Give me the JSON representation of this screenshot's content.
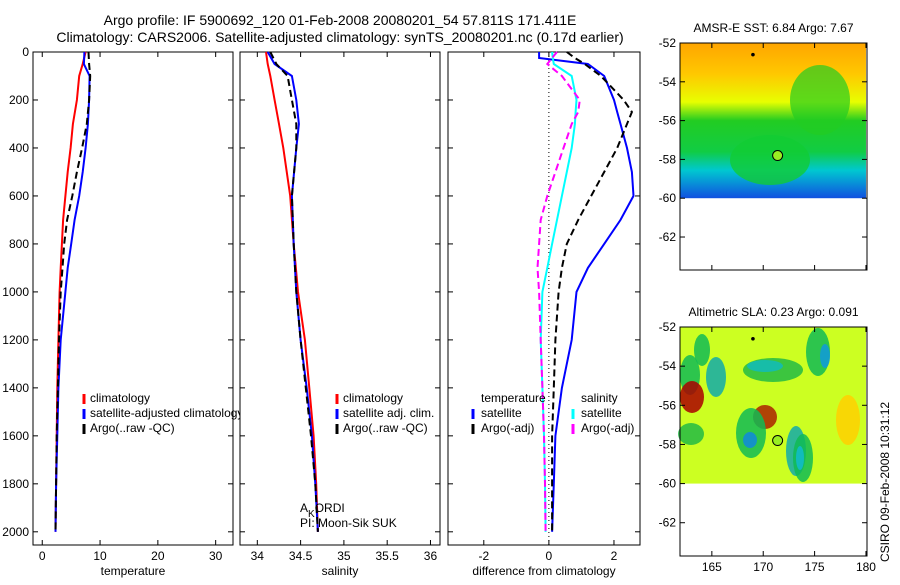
{
  "title": {
    "line1": "Argo profile: IF 5900692_120 01-Feb-2008 20080201_54 57.811S 171.411E",
    "line2": "Climatology: CARS2006. Satellite-adjusted climatology: synTS_20080201.nc (0.17d earlier)"
  },
  "credit": "CSIRO 09-Feb-2008 10:31:12",
  "annotation": {
    "agency_main": "A",
    "agency_sub": "K",
    "agency_rest": "ORDI",
    "pi": "PI: Moon-Sik SUK"
  },
  "colors": {
    "climatology": "#ff0000",
    "satellite": "#0000ff",
    "argo": "#000000",
    "sal_satellite": "#00ffff",
    "sal_argo": "#ff00ff"
  },
  "chart_data": [
    {
      "type": "line",
      "xlabel": "temperature",
      "ylabel": "",
      "xlim": [
        -1.6,
        33
      ],
      "ylim": [
        2055,
        0
      ],
      "xticks": [
        "0",
        "10",
        "20",
        "30"
      ],
      "xtick_values": [
        0,
        10,
        20,
        30
      ],
      "yticks": [
        "0",
        "200",
        "400",
        "600",
        "800",
        "1000",
        "1200",
        "1400",
        "1600",
        "1800",
        "2000"
      ],
      "legend": [
        "climatology",
        "satellite-adjusted climatology",
        "Argo(..raw -QC)"
      ],
      "legend_position": "lower-right",
      "depth": [
        0,
        50,
        100,
        200,
        300,
        400,
        500,
        600,
        700,
        800,
        900,
        1000,
        1200,
        1400,
        1600,
        1800,
        2000
      ],
      "series": [
        {
          "name": "climatology",
          "style": "solid",
          "color": "#ff0000",
          "values": [
            7.5,
            7.0,
            6.4,
            6.0,
            5.3,
            4.9,
            4.4,
            4.0,
            3.6,
            3.4,
            3.2,
            3.0,
            2.8,
            2.6,
            2.5,
            2.4,
            2.3
          ]
        },
        {
          "name": "satellite-adjusted climatology",
          "style": "solid",
          "color": "#0000ff",
          "values": [
            7.3,
            7.2,
            8.2,
            8.1,
            7.9,
            7.5,
            7.0,
            6.4,
            5.6,
            5.0,
            4.4,
            4.0,
            3.2,
            2.8,
            2.6,
            2.4,
            2.3
          ]
        },
        {
          "name": "Argo(..raw -QC)",
          "style": "dash",
          "color": "#000000",
          "values": [
            8.0,
            8.1,
            8.3,
            8.1,
            7.7,
            6.9,
            6.0,
            5.2,
            4.3,
            3.8,
            3.5,
            3.2,
            2.9,
            2.7,
            2.5,
            2.4,
            2.3
          ]
        }
      ]
    },
    {
      "type": "line",
      "xlabel": "salinity",
      "xlim": [
        33.8,
        36.11
      ],
      "ylim": [
        2055,
        0
      ],
      "xticks": [
        "34",
        "34.5",
        "35",
        "35.5",
        "36"
      ],
      "xtick_values": [
        34,
        34.5,
        35,
        35.5,
        36
      ],
      "legend": [
        "climatology",
        "satellite adj. clim.",
        "Argo(..raw -QC)"
      ],
      "legend_position": "lower-right",
      "depth": [
        0,
        50,
        100,
        200,
        300,
        400,
        600,
        800,
        1000,
        1200,
        1400,
        1600,
        1800,
        2000
      ],
      "series": [
        {
          "name": "climatology",
          "style": "solid",
          "color": "#ff0000",
          "values": [
            34.1,
            34.12,
            34.15,
            34.2,
            34.25,
            34.3,
            34.38,
            34.42,
            34.47,
            34.55,
            34.6,
            34.65,
            34.68,
            34.7
          ]
        },
        {
          "name": "satellite adj. clim.",
          "style": "solid",
          "color": "#0000ff",
          "values": [
            34.12,
            34.2,
            34.4,
            34.45,
            34.48,
            34.45,
            34.4,
            34.42,
            34.45,
            34.5,
            34.57,
            34.63,
            34.67,
            34.7
          ]
        },
        {
          "name": "Argo(..raw -QC)",
          "style": "dash",
          "color": "#000000",
          "values": [
            34.15,
            34.22,
            34.35,
            34.4,
            34.45,
            34.45,
            34.4,
            34.42,
            34.45,
            34.5,
            34.56,
            34.62,
            34.67,
            34.7
          ]
        }
      ]
    },
    {
      "type": "line",
      "xlabel": "difference from climatology",
      "xlim": [
        -3.1,
        2.8
      ],
      "ylim": [
        2055,
        0
      ],
      "xticks": [
        "-2",
        "0",
        "2"
      ],
      "xtick_values": [
        -2,
        0,
        2
      ],
      "legend_temperature_heading": "temperature",
      "legend_salinity_heading": "salinity",
      "legend": [
        "satellite",
        "Argo(-adj)",
        "satellite",
        "Argo(-adj)"
      ],
      "legend_position": "lower-center",
      "depth": [
        0,
        25,
        50,
        100,
        200,
        250,
        300,
        400,
        500,
        600,
        700,
        800,
        900,
        1000,
        1200,
        1400,
        1600,
        1800,
        2000
      ],
      "series": [
        {
          "name": "temperature satellite",
          "style": "solid",
          "color": "#0000ff",
          "values": [
            -0.3,
            -0.3,
            1.2,
            1.7,
            2.0,
            2.1,
            2.2,
            2.4,
            2.55,
            2.6,
            2.2,
            1.7,
            1.2,
            0.85,
            0.7,
            0.4,
            0.2,
            0.15,
            0.1
          ]
        },
        {
          "name": "temperature Argo(-adj)",
          "style": "dash",
          "color": "#000000",
          "values": [
            0.55,
            0.8,
            1.1,
            1.6,
            2.3,
            2.55,
            2.4,
            2.1,
            1.7,
            1.3,
            0.9,
            0.55,
            0.4,
            0.3,
            0.2,
            0.15,
            0.1,
            0.1,
            0.1
          ]
        },
        {
          "name": "salinity satellite",
          "style": "solid",
          "color": "#00ffff",
          "values": [
            0.1,
            0.12,
            0.15,
            0.7,
            0.85,
            0.82,
            0.8,
            0.7,
            0.55,
            0.4,
            0.25,
            0.1,
            -0.05,
            -0.2,
            -0.25,
            -0.2,
            -0.15,
            -0.12,
            -0.1
          ]
        },
        {
          "name": "salinity Argo(-adj)",
          "style": "dash",
          "color": "#ff00ff",
          "values": [
            0.25,
            0.1,
            -0.05,
            0.4,
            0.95,
            0.9,
            0.7,
            0.45,
            0.2,
            -0.05,
            -0.25,
            -0.3,
            -0.35,
            -0.3,
            -0.25,
            -0.2,
            -0.15,
            -0.12,
            -0.1
          ]
        }
      ]
    },
    {
      "type": "heatmap",
      "title": "AMSR-E SST: 6.84 Argo: 7.67",
      "xlim": [
        161.9,
        180.1
      ],
      "ylim": [
        -63.7,
        -52
      ],
      "xticks": [],
      "xtick_values": [
        165,
        170,
        175,
        180
      ],
      "yticks": [
        "-52",
        "-54",
        "-56",
        "-58",
        "-60",
        "-62"
      ],
      "ytick_values": [
        -52,
        -54,
        -56,
        -58,
        -60,
        -62
      ],
      "data_extent": {
        "lon": [
          161.9,
          180
        ],
        "lat": [
          -60,
          -52
        ]
      },
      "argo_point": {
        "lon": 171.4,
        "lat": -57.8
      },
      "previous_point": {
        "lon": 169,
        "lat": -52.6
      }
    },
    {
      "type": "heatmap",
      "title": "Altimetric SLA: 0.23 Argo: 0.091",
      "xlim": [
        161.9,
        180.1
      ],
      "ylim": [
        -63.7,
        -52
      ],
      "xticks": [
        "165",
        "170",
        "175",
        "180"
      ],
      "xtick_values": [
        165,
        170,
        175,
        180
      ],
      "yticks": [
        "-52",
        "-54",
        "-56",
        "-58",
        "-60",
        "-62"
      ],
      "ytick_values": [
        -52,
        -54,
        -56,
        -58,
        -60,
        -62
      ],
      "data_extent": {
        "lon": [
          161.9,
          180
        ],
        "lat": [
          -60,
          -52
        ]
      },
      "argo_point": {
        "lon": 171.4,
        "lat": -57.8
      },
      "previous_point": {
        "lon": 169,
        "lat": -52.6
      }
    }
  ]
}
